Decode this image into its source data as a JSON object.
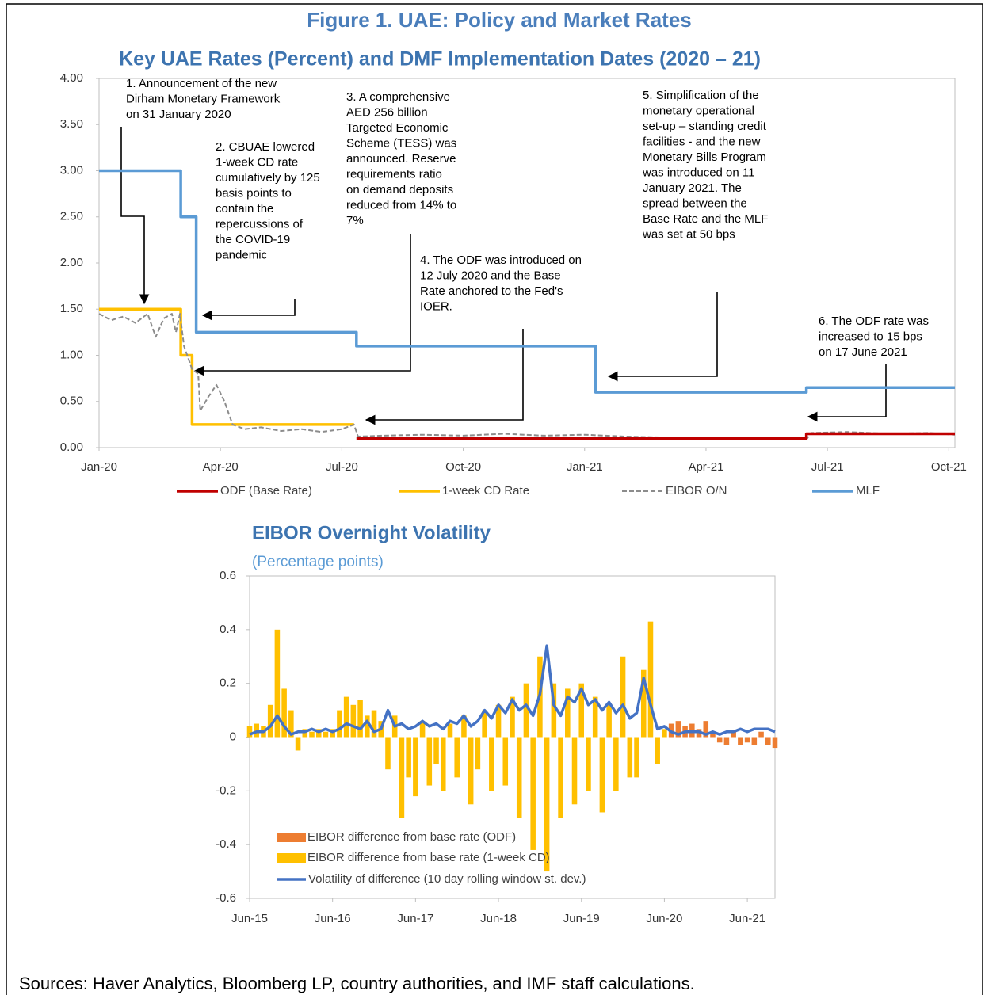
{
  "title": "Figure 1. UAE: Policy and Market Rates",
  "source": "Sources: Haver Analytics, Bloomberg LP, country authorities, and IMF staff calculations.",
  "chart_data": [
    {
      "type": "line",
      "title": "Key UAE Rates (Percent) and DMF Implementation Dates (2020 – 21)",
      "xlim": [
        0,
        21.15
      ],
      "xticks": [
        {
          "value": 0,
          "label": "Jan-20"
        },
        {
          "value": 3,
          "label": "Apr-20"
        },
        {
          "value": 6,
          "label": "Jul-20"
        },
        {
          "value": 9,
          "label": "Oct-20"
        },
        {
          "value": 12,
          "label": "Jan-21"
        },
        {
          "value": 15,
          "label": "Apr-21"
        },
        {
          "value": 18,
          "label": "Jul-21"
        },
        {
          "value": 21,
          "label": "Oct-21"
        }
      ],
      "ylim": [
        0,
        4
      ],
      "yticks": [
        {
          "value": 0,
          "label": "0.00"
        },
        {
          "value": 0.5,
          "label": "0.50"
        },
        {
          "value": 1,
          "label": "1.00"
        },
        {
          "value": 1.5,
          "label": "1.50"
        },
        {
          "value": 2,
          "label": "2.00"
        },
        {
          "value": 2.5,
          "label": "2.50"
        },
        {
          "value": 3,
          "label": "3.00"
        },
        {
          "value": 3.5,
          "label": "3.50"
        },
        {
          "value": 4,
          "label": "4.00"
        }
      ],
      "grid": false,
      "legend": "bottom",
      "series": [
        {
          "name": "ODF (Base Rate)",
          "color": "#c00000",
          "x": [
            6.36,
            17.48,
            17.48,
            21.15
          ],
          "values": [
            0.1,
            0.1,
            0.15,
            0.15
          ]
        },
        {
          "name": "1-week CD Rate",
          "color": "#ffc000",
          "x": [
            0,
            2.02,
            2.02,
            2.3,
            2.3,
            6.3
          ],
          "values": [
            1.5,
            1.5,
            1.0,
            1.0,
            0.25,
            0.25
          ]
        },
        {
          "name": "EIBOR O/N",
          "color": "#8c8c8c",
          "dash": true,
          "x": [
            0,
            0.3,
            0.6,
            0.9,
            1.2,
            1.4,
            1.6,
            1.8,
            1.9,
            2.0,
            2.1,
            2.3,
            2.45,
            2.5,
            2.7,
            2.9,
            3.1,
            3.3,
            3.6,
            4,
            4.5,
            5,
            5.5,
            6,
            6.3,
            6.4,
            7,
            8,
            9,
            10,
            11,
            12,
            13,
            14,
            15,
            16,
            17,
            17.5,
            17.6,
            18.5,
            19.5,
            20.5,
            21.15
          ],
          "values": [
            1.45,
            1.38,
            1.42,
            1.35,
            1.45,
            1.2,
            1.4,
            1.45,
            1.25,
            1.45,
            1.1,
            0.85,
            0.8,
            0.4,
            0.55,
            0.68,
            0.5,
            0.25,
            0.2,
            0.22,
            0.18,
            0.2,
            0.17,
            0.2,
            0.25,
            0.12,
            0.13,
            0.14,
            0.13,
            0.15,
            0.13,
            0.14,
            0.12,
            0.11,
            0.1,
            0.09,
            0.1,
            0.1,
            0.16,
            0.17,
            0.15,
            0.16,
            0.14
          ]
        },
        {
          "name": "MLF",
          "color": "#5b9bd5",
          "x": [
            0,
            2.02,
            2.02,
            2.4,
            2.4,
            6.36,
            6.36,
            12.27,
            12.27,
            17.48,
            17.48,
            21.15
          ],
          "values": [
            3,
            3,
            2.5,
            2.5,
            1.25,
            1.25,
            1.1,
            1.1,
            0.6,
            0.6,
            0.65,
            0.65
          ]
        }
      ],
      "annotations": [
        {
          "lines": [
            "1. Announcement of the new",
            "Dirham Monetary Framework",
            "on 31 January 2020"
          ]
        },
        {
          "lines": [
            "2. CBUAE lowered",
            "1-week CD rate",
            "cumulatively by 125",
            "basis points to",
            "contain the",
            "repercussions of",
            "the COVID-19",
            "pandemic"
          ]
        },
        {
          "lines": [
            "3. A comprehensive",
            "AED 256 billion",
            "Targeted Economic",
            "Scheme (TESS) was",
            "announced. Reserve",
            "requirements ratio",
            "on demand deposits",
            "reduced from 14% to",
            "7%"
          ]
        },
        {
          "lines": [
            "4. The ODF was introduced on",
            "12 July 2020 and the Base",
            "Rate anchored to the Fed's",
            "IOER."
          ]
        },
        {
          "lines": [
            "5. Simplification of the",
            "monetary operational",
            "set-up – standing credit",
            "facilities  - and the new",
            "Monetary Bills Program",
            "was introduced on 11",
            "January 2021. The",
            "spread between the",
            "Base Rate and the MLF",
            "was set at 50 bps"
          ]
        },
        {
          "lines": [
            "6. The ODF rate was",
            "increased to 15 bps",
            "on 17 June 2021"
          ]
        }
      ]
    },
    {
      "type": "bar",
      "title": "EIBOR Overnight Volatility",
      "subtitle": "(Percentage points)",
      "xlim": [
        0,
        76
      ],
      "xticks": [
        {
          "value": 0,
          "label": "Jun-15"
        },
        {
          "value": 12,
          "label": "Jun-16"
        },
        {
          "value": 24,
          "label": "Jun-17"
        },
        {
          "value": 36,
          "label": "Jun-18"
        },
        {
          "value": 48,
          "label": "Jun-19"
        },
        {
          "value": 60,
          "label": "Jun-20"
        },
        {
          "value": 72,
          "label": "Jun-21"
        }
      ],
      "ylim": [
        -0.6,
        0.6
      ],
      "yticks": [
        0.6,
        0.4,
        0.2,
        0,
        -0.2,
        -0.4,
        -0.6
      ],
      "grid": false,
      "legend": "lower left",
      "series": [
        {
          "name": "EIBOR difference from base rate (ODF)",
          "color": "#ed7d31",
          "x": [
            61,
            62,
            63,
            64,
            65,
            66,
            67,
            68,
            69,
            70,
            71,
            72,
            73,
            74,
            75,
            76
          ],
          "values": [
            0.05,
            0.06,
            0.04,
            0.05,
            0.03,
            0.06,
            0.02,
            -0.02,
            -0.03,
            0.02,
            -0.03,
            -0.02,
            -0.03,
            0.02,
            -0.03,
            -0.04
          ]
        },
        {
          "name": "EIBOR difference from base rate (1-week CD)",
          "color": "#ffc000",
          "x": [
            0,
            1,
            2,
            3,
            4,
            5,
            6,
            7,
            8,
            9,
            10,
            11,
            12,
            13,
            14,
            15,
            16,
            17,
            18,
            19,
            20,
            21,
            22,
            23,
            24,
            25,
            26,
            27,
            28,
            29,
            30,
            31,
            32,
            33,
            34,
            35,
            36,
            37,
            38,
            39,
            40,
            41,
            42,
            43,
            44,
            45,
            46,
            47,
            48,
            49,
            50,
            51,
            52,
            53,
            54,
            55,
            56,
            57,
            58,
            59,
            60
          ],
          "values": [
            0.04,
            0.05,
            0.04,
            0.12,
            0.4,
            0.18,
            0.1,
            -0.05,
            0.03,
            0.02,
            0.03,
            0.02,
            0.03,
            0.1,
            0.15,
            0.12,
            0.14,
            0.08,
            0.1,
            0.06,
            -0.12,
            0.08,
            -0.3,
            -0.15,
            -0.22,
            0.06,
            -0.18,
            -0.1,
            -0.2,
            0.05,
            -0.15,
            0.08,
            -0.25,
            -0.12,
            0.1,
            -0.2,
            0.12,
            -0.18,
            0.15,
            -0.3,
            0.2,
            -0.42,
            0.3,
            -0.5,
            0.2,
            -0.3,
            0.18,
            -0.25,
            0.2,
            -0.2,
            0.15,
            -0.28,
            0.12,
            -0.2,
            0.3,
            -0.15,
            -0.15,
            0.25,
            0.43,
            -0.1,
            0.03
          ]
        },
        {
          "name": "Volatility of difference (10 day rolling window st. dev.)",
          "color": "#4472c4",
          "type": "line",
          "x": [
            0,
            1,
            2,
            3,
            4,
            5,
            6,
            7,
            8,
            9,
            10,
            11,
            12,
            13,
            14,
            15,
            16,
            17,
            18,
            19,
            20,
            21,
            22,
            23,
            24,
            25,
            26,
            27,
            28,
            29,
            30,
            31,
            32,
            33,
            34,
            35,
            36,
            37,
            38,
            39,
            40,
            41,
            42,
            43,
            44,
            45,
            46,
            47,
            48,
            49,
            50,
            51,
            52,
            53,
            54,
            55,
            56,
            57,
            58,
            59,
            60,
            61,
            62,
            63,
            64,
            65,
            66,
            67,
            68,
            69,
            70,
            71,
            72,
            73,
            74,
            75,
            76
          ],
          "values": [
            0.01,
            0.02,
            0.02,
            0.04,
            0.08,
            0.04,
            0.01,
            0.02,
            0.02,
            0.03,
            0.02,
            0.03,
            0.02,
            0.03,
            0.05,
            0.04,
            0.03,
            0.06,
            0.02,
            0.03,
            0.1,
            0.04,
            0.05,
            0.03,
            0.04,
            0.06,
            0.04,
            0.05,
            0.03,
            0.06,
            0.05,
            0.08,
            0.04,
            0.06,
            0.1,
            0.07,
            0.12,
            0.09,
            0.14,
            0.1,
            0.12,
            0.08,
            0.16,
            0.34,
            0.12,
            0.08,
            0.15,
            0.13,
            0.18,
            0.12,
            0.14,
            0.1,
            0.13,
            0.09,
            0.12,
            0.07,
            0.09,
            0.22,
            0.12,
            0.03,
            0.04,
            0.02,
            0.01,
            0.02,
            0.02,
            0.02,
            0.01,
            0.02,
            0.01,
            0.02,
            0.02,
            0.03,
            0.02,
            0.03,
            0.03,
            0.03,
            0.02
          ]
        }
      ]
    }
  ]
}
